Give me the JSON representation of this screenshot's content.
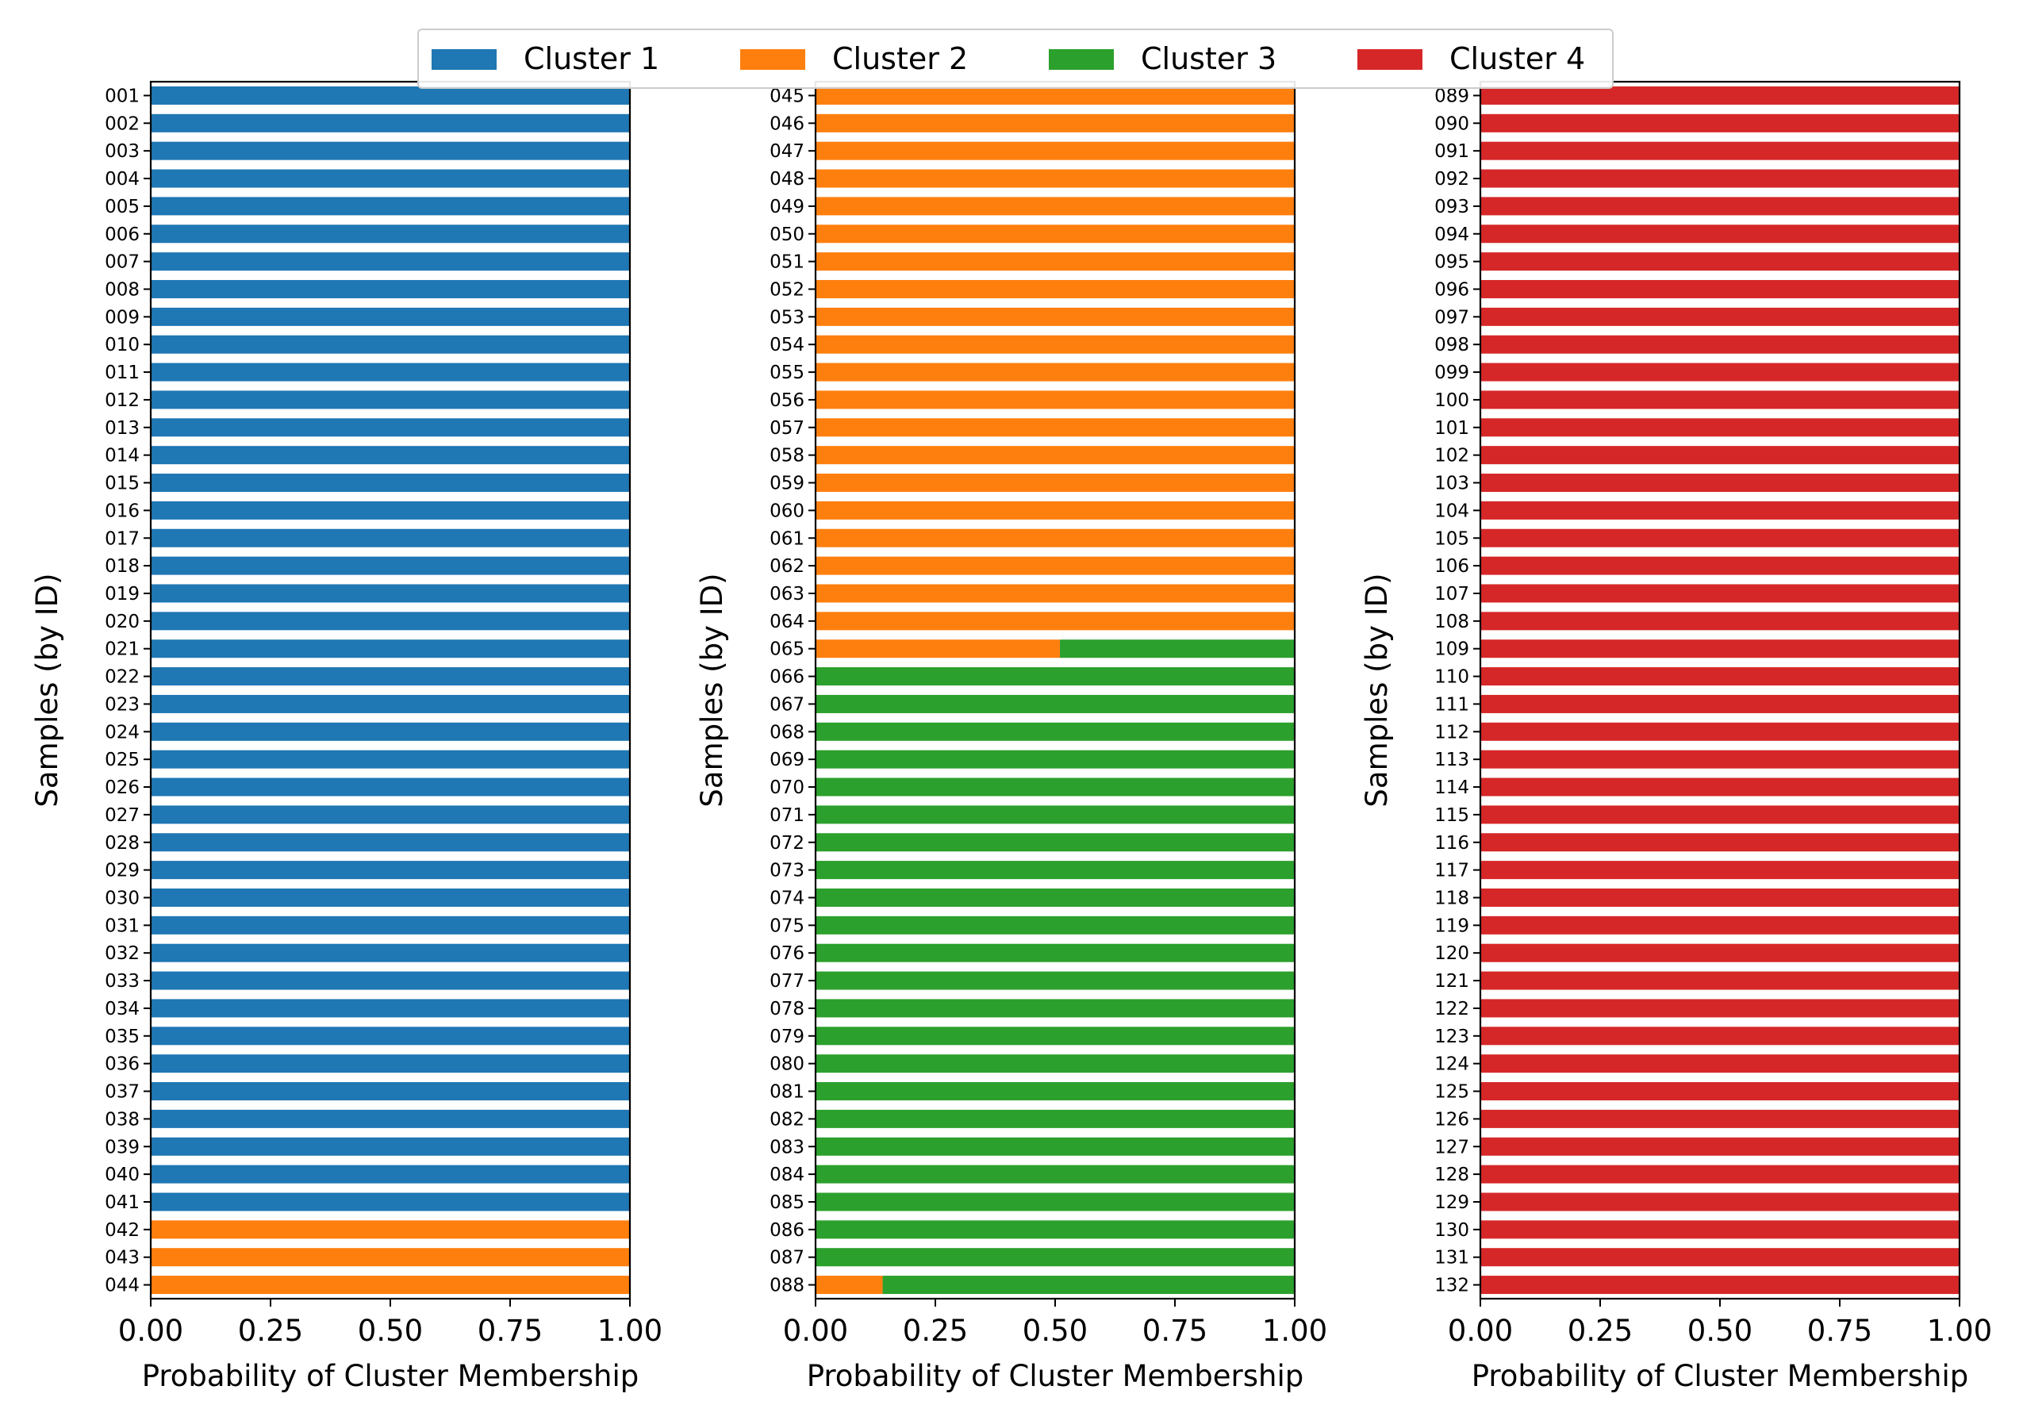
{
  "chart_data": {
    "type": "bar",
    "orientation": "horizontal",
    "stacked": true,
    "legend": {
      "placement": "top-center",
      "entries": [
        {
          "name": "Cluster 1",
          "color": "#1f77b4"
        },
        {
          "name": "Cluster 2",
          "color": "#ff7f0e"
        },
        {
          "name": "Cluster 3",
          "color": "#2ca02c"
        },
        {
          "name": "Cluster 4",
          "color": "#d62728"
        }
      ]
    },
    "grid": false,
    "panels": [
      {
        "xlabel": "Probability of Cluster Membership",
        "ylabel": "Samples (by ID)",
        "xlim": [
          0,
          1
        ],
        "xticks": [
          "0.00",
          "0.25",
          "0.50",
          "0.75",
          "1.00"
        ],
        "id_start": 1,
        "count": 44,
        "default_membership": [
          1,
          0,
          0,
          0
        ],
        "overrides": {
          "042": [
            0,
            1,
            0,
            0
          ],
          "043": [
            0,
            1,
            0,
            0
          ],
          "044": [
            0,
            1,
            0,
            0
          ]
        }
      },
      {
        "xlabel": "Probability of Cluster Membership",
        "ylabel": "Samples (by ID)",
        "xlim": [
          0,
          1
        ],
        "xticks": [
          "0.00",
          "0.25",
          "0.50",
          "0.75",
          "1.00"
        ],
        "id_start": 45,
        "count": 44,
        "default_membership": [
          0,
          0,
          1,
          0
        ],
        "overrides": {
          "045": [
            0,
            1,
            0,
            0
          ],
          "046": [
            0,
            1,
            0,
            0
          ],
          "047": [
            0,
            1,
            0,
            0
          ],
          "048": [
            0,
            1,
            0,
            0
          ],
          "049": [
            0,
            1,
            0,
            0
          ],
          "050": [
            0,
            1,
            0,
            0
          ],
          "051": [
            0,
            1,
            0,
            0
          ],
          "052": [
            0,
            1,
            0,
            0
          ],
          "053": [
            0,
            1,
            0,
            0
          ],
          "054": [
            0,
            1,
            0,
            0
          ],
          "055": [
            0,
            1,
            0,
            0
          ],
          "056": [
            0,
            1,
            0,
            0
          ],
          "057": [
            0,
            1,
            0,
            0
          ],
          "058": [
            0,
            1,
            0,
            0
          ],
          "059": [
            0,
            1,
            0,
            0
          ],
          "060": [
            0,
            1,
            0,
            0
          ],
          "061": [
            0,
            1,
            0,
            0
          ],
          "062": [
            0,
            1,
            0,
            0
          ],
          "063": [
            0,
            1,
            0,
            0
          ],
          "064": [
            0,
            1,
            0,
            0
          ],
          "065": [
            0,
            0.51,
            0.49,
            0
          ],
          "088": [
            0,
            0.14,
            0.86,
            0
          ]
        }
      },
      {
        "xlabel": "Probability of Cluster Membership",
        "ylabel": "Samples (by ID)",
        "xlim": [
          0,
          1
        ],
        "xticks": [
          "0.00",
          "0.25",
          "0.50",
          "0.75",
          "1.00"
        ],
        "id_start": 89,
        "count": 44,
        "default_membership": [
          0,
          0,
          0,
          1
        ],
        "overrides": {}
      }
    ]
  }
}
